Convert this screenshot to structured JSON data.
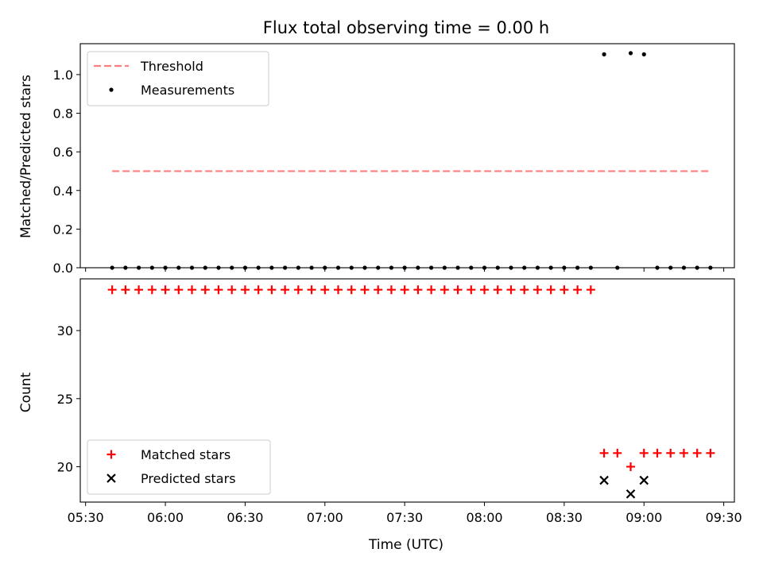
{
  "chart_data": [
    {
      "type": "scatter",
      "title": "Flux total observing time = 0.00 h",
      "xlabel": "",
      "ylabel": "Matched/Predicted stars",
      "xlim": [
        "05:28",
        "09:34"
      ],
      "ylim": [
        0,
        1.16
      ],
      "yticks": [
        "0.0",
        "0.2",
        "0.4",
        "0.6",
        "0.8",
        "1.0"
      ],
      "legend_position": "top-left",
      "series": [
        {
          "name": "Threshold",
          "kind": "line",
          "style": "dashed",
          "color": "#ff7f7f",
          "x": [
            "05:40",
            "09:25"
          ],
          "y": [
            0.5,
            0.5
          ]
        },
        {
          "name": "Measurements",
          "kind": "scatter",
          "marker": "dot",
          "color": "#000000",
          "x": [
            "05:40",
            "05:45",
            "05:50",
            "05:55",
            "06:00",
            "06:05",
            "06:10",
            "06:15",
            "06:20",
            "06:25",
            "06:30",
            "06:35",
            "06:40",
            "06:45",
            "06:50",
            "06:55",
            "07:00",
            "07:05",
            "07:10",
            "07:15",
            "07:20",
            "07:25",
            "07:30",
            "07:35",
            "07:40",
            "07:45",
            "07:50",
            "07:55",
            "08:00",
            "08:05",
            "08:10",
            "08:15",
            "08:20",
            "08:25",
            "08:30",
            "08:35",
            "08:40",
            "08:45",
            "08:50",
            "08:55",
            "09:00",
            "09:05",
            "09:10",
            "09:15",
            "09:20",
            "09:25"
          ],
          "y": [
            0,
            0,
            0,
            0,
            0,
            0,
            0,
            0,
            0,
            0,
            0,
            0,
            0,
            0,
            0,
            0,
            0,
            0,
            0,
            0,
            0,
            0,
            0,
            0,
            0,
            0,
            0,
            0,
            0,
            0,
            0,
            0,
            0,
            0,
            0,
            0,
            0,
            1.105,
            0,
            1.111,
            1.105,
            0,
            0,
            0,
            0,
            0
          ]
        }
      ]
    },
    {
      "type": "scatter",
      "title": "",
      "xlabel": "Time (UTC)",
      "ylabel": "Count",
      "xlim": [
        "05:28",
        "09:34"
      ],
      "ylim": [
        17.4,
        33.8
      ],
      "xticks": [
        "05:30",
        "06:00",
        "06:30",
        "07:00",
        "07:30",
        "08:00",
        "08:30",
        "09:00",
        "09:30"
      ],
      "yticks": [
        "20",
        "25",
        "30"
      ],
      "legend_position": "bottom-left",
      "series": [
        {
          "name": "Matched stars",
          "kind": "scatter",
          "marker": "plus",
          "color": "#ff0000",
          "x": [
            "05:40",
            "05:45",
            "05:50",
            "05:55",
            "06:00",
            "06:05",
            "06:10",
            "06:15",
            "06:20",
            "06:25",
            "06:30",
            "06:35",
            "06:40",
            "06:45",
            "06:50",
            "06:55",
            "07:00",
            "07:05",
            "07:10",
            "07:15",
            "07:20",
            "07:25",
            "07:30",
            "07:35",
            "07:40",
            "07:45",
            "07:50",
            "07:55",
            "08:00",
            "08:05",
            "08:10",
            "08:15",
            "08:20",
            "08:25",
            "08:30",
            "08:35",
            "08:40",
            "08:45",
            "08:50",
            "08:55",
            "09:00",
            "09:05",
            "09:10",
            "09:15",
            "09:20",
            "09:25"
          ],
          "y": [
            33,
            33,
            33,
            33,
            33,
            33,
            33,
            33,
            33,
            33,
            33,
            33,
            33,
            33,
            33,
            33,
            33,
            33,
            33,
            33,
            33,
            33,
            33,
            33,
            33,
            33,
            33,
            33,
            33,
            33,
            33,
            33,
            33,
            33,
            33,
            33,
            33,
            21,
            21,
            20,
            21,
            21,
            21,
            21,
            21,
            21
          ]
        },
        {
          "name": "Predicted stars",
          "kind": "scatter",
          "marker": "x",
          "color": "#000000",
          "x": [
            "08:45",
            "08:55",
            "09:00"
          ],
          "y": [
            19,
            18,
            19
          ]
        }
      ]
    }
  ]
}
